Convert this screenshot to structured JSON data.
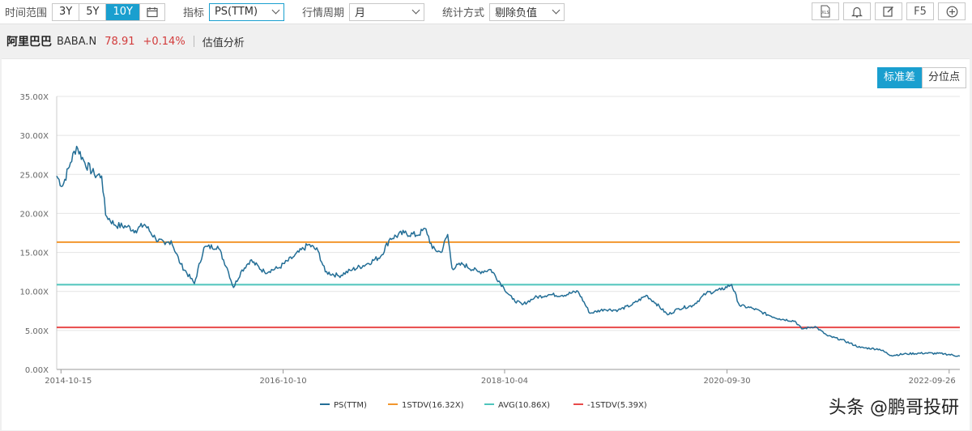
{
  "toolbar": {
    "time_range_label": "时间范围",
    "time_ranges": [
      "3Y",
      "5Y",
      "10Y"
    ],
    "active_range": "10Y",
    "indicator_label": "指标",
    "indicator_value": "PS(TTM)",
    "period_label": "行情周期",
    "period_value": "月",
    "method_label": "统计方式",
    "method_value": "剔除负值",
    "xls_label": "XLS",
    "f5_label": "F5"
  },
  "stock": {
    "name": "阿里巴巴",
    "code": "BABA.N",
    "price": "78.91",
    "change": "+0.14%",
    "section": "估值分析"
  },
  "view_toggle": {
    "std_label": "标准差",
    "pct_label": "分位点"
  },
  "watermark": "头条 @鹏哥投研",
  "colors": {
    "accent": "#1a9fcf",
    "series": "#236e96",
    "up": "#d23b3b"
  },
  "chart_data": {
    "type": "line",
    "ylim": [
      0,
      35
    ],
    "y_ticks": [
      "0.00X",
      "5.00X",
      "10.00X",
      "15.00X",
      "20.00X",
      "25.00X",
      "30.00X",
      "35.00X"
    ],
    "x_range": [
      "2014-10-01",
      "2022-10-31"
    ],
    "x_ticks": [
      "2014-10-15",
      "2016-10-10",
      "2018-10-04",
      "2020-09-30",
      "2022-09-26"
    ],
    "series": [
      {
        "name": "PS(TTM)",
        "color": "#236e96",
        "points": [
          [
            "2014-10-01",
            24.8
          ],
          [
            "2014-10-20",
            23.5
          ],
          [
            "2014-11-15",
            26.5
          ],
          [
            "2014-12-05",
            28.6
          ],
          [
            "2015-01-01",
            26.5
          ],
          [
            "2015-02-01",
            25.0
          ],
          [
            "2015-02-25",
            24.8
          ],
          [
            "2015-03-10",
            19.8
          ],
          [
            "2015-04-10",
            18.5
          ],
          [
            "2015-05-20",
            18.3
          ],
          [
            "2015-06-15",
            17.8
          ],
          [
            "2015-07-15",
            18.6
          ],
          [
            "2015-08-20",
            16.8
          ],
          [
            "2015-09-20",
            16.0
          ],
          [
            "2015-10-10",
            16.5
          ],
          [
            "2015-11-10",
            13.5
          ],
          [
            "2015-12-25",
            11.0
          ],
          [
            "2016-01-25",
            15.6
          ],
          [
            "2016-03-10",
            15.8
          ],
          [
            "2016-04-10",
            13.0
          ],
          [
            "2016-05-01",
            10.5
          ],
          [
            "2016-05-25",
            12.5
          ],
          [
            "2016-06-25",
            14.0
          ],
          [
            "2016-08-10",
            12.5
          ],
          [
            "2016-09-25",
            13.0
          ],
          [
            "2016-11-15",
            14.5
          ],
          [
            "2017-01-01",
            16.0
          ],
          [
            "2017-02-01",
            15.2
          ],
          [
            "2017-02-25",
            12.5
          ],
          [
            "2017-04-10",
            12.0
          ],
          [
            "2017-05-25",
            12.8
          ],
          [
            "2017-07-10",
            13.5
          ],
          [
            "2017-08-25",
            14.5
          ],
          [
            "2017-09-25",
            16.8
          ],
          [
            "2017-11-10",
            17.5
          ],
          [
            "2017-12-20",
            17.2
          ],
          [
            "2018-01-20",
            18.0
          ],
          [
            "2018-02-10",
            15.5
          ],
          [
            "2018-03-10",
            15.0
          ],
          [
            "2018-04-01",
            17.3
          ],
          [
            "2018-04-15",
            13.0
          ],
          [
            "2018-05-20",
            13.5
          ],
          [
            "2018-07-10",
            12.5
          ],
          [
            "2018-08-20",
            12.8
          ],
          [
            "2018-10-01",
            10.5
          ],
          [
            "2018-10-30",
            9.0
          ],
          [
            "2018-12-01",
            8.3
          ],
          [
            "2019-01-10",
            9.2
          ],
          [
            "2019-02-25",
            9.6
          ],
          [
            "2019-04-10",
            9.5
          ],
          [
            "2019-06-01",
            10.0
          ],
          [
            "2019-07-10",
            7.2
          ],
          [
            "2019-08-25",
            7.7
          ],
          [
            "2019-10-10",
            7.6
          ],
          [
            "2019-11-25",
            8.3
          ],
          [
            "2020-01-10",
            9.5
          ],
          [
            "2020-02-10",
            8.5
          ],
          [
            "2020-03-20",
            7.0
          ],
          [
            "2020-04-25",
            7.8
          ],
          [
            "2020-06-10",
            8.2
          ],
          [
            "2020-07-25",
            9.8
          ],
          [
            "2020-09-10",
            10.2
          ],
          [
            "2020-10-15",
            10.9
          ],
          [
            "2020-11-10",
            8.2
          ],
          [
            "2020-12-25",
            7.8
          ],
          [
            "2021-02-10",
            7.0
          ],
          [
            "2021-03-20",
            6.5
          ],
          [
            "2021-05-10",
            6.2
          ],
          [
            "2021-06-01",
            5.2
          ],
          [
            "2021-07-15",
            5.5
          ],
          [
            "2021-08-25",
            4.3
          ],
          [
            "2021-10-10",
            3.8
          ],
          [
            "2021-12-10",
            2.8
          ],
          [
            "2022-02-10",
            2.6
          ],
          [
            "2022-03-20",
            1.8
          ],
          [
            "2022-05-10",
            2.0
          ],
          [
            "2022-07-10",
            2.1
          ],
          [
            "2022-09-10",
            2.0
          ],
          [
            "2022-10-31",
            1.7
          ]
        ]
      },
      {
        "name": "1STDV(16.32X)",
        "color": "#f2962d",
        "value": 16.32
      },
      {
        "name": "AVG(10.86X)",
        "color": "#4fc5bc",
        "value": 10.86
      },
      {
        "name": "-1STDV(5.39X)",
        "color": "#e84a4a",
        "value": 5.39
      }
    ],
    "legend_position": "bottom",
    "grid": "horizontal"
  }
}
